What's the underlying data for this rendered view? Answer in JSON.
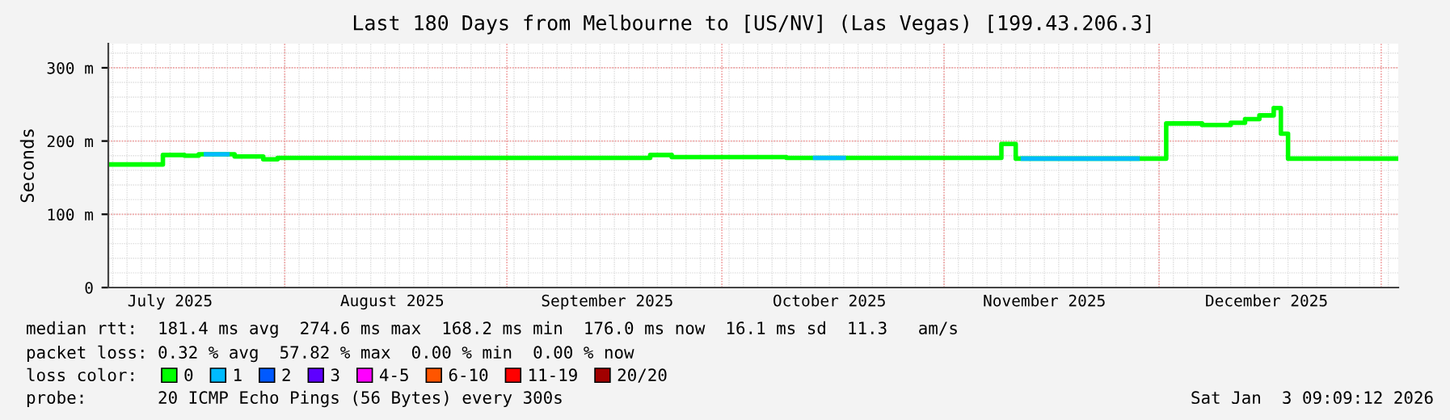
{
  "chart_data": {
    "type": "step",
    "title": "Last 180 Days from Melbourne to [US/NV] (Las Vegas) [199.43.206.3]",
    "ylabel": "Seconds",
    "xlim": [
      "2025-07-07T09:09",
      "2026-01-03T09:09"
    ],
    "xticks": [
      {
        "value": "2025-07-16",
        "label": "July 2025"
      },
      {
        "value": "2025-08-16",
        "label": "August 2025"
      },
      {
        "value": "2025-09-15",
        "label": "September 2025"
      },
      {
        "value": "2025-10-16",
        "label": "October 2025"
      },
      {
        "value": "2025-11-15",
        "label": "November 2025"
      },
      {
        "value": "2025-12-16",
        "label": "December 2025"
      },
      {
        "value": "2025-08-01",
        "label": null
      },
      {
        "value": "2025-09-01",
        "label": null
      },
      {
        "value": "2025-10-01",
        "label": null
      },
      {
        "value": "2025-11-01",
        "label": null
      },
      {
        "value": "2025-12-01",
        "label": null
      },
      {
        "value": "2026-01-01",
        "label": null
      }
    ],
    "ylim": [
      0,
      333
    ],
    "yticks": [
      0,
      {
        "value": 100,
        "label": "100 m"
      },
      {
        "value": 200,
        "label": "200 m"
      },
      {
        "value": 300,
        "label": "300 m"
      }
    ],
    "grid": true,
    "legend": "bottom",
    "legend_title": "loss color:",
    "series": [
      {
        "name": "0",
        "color": "#00ff00",
        "x": [
          "2025-07-07T09:09",
          "2025-07-15",
          "2025-07-18",
          "2025-07-20",
          "2025-07-25",
          "2025-07-29",
          "2025-07-31",
          "2025-09-21",
          "2025-09-24",
          "2025-10-10",
          "2025-11-09",
          "2025-11-11",
          "2025-12-02",
          "2025-12-07",
          "2025-12-11",
          "2025-12-13",
          "2025-12-15",
          "2025-12-17",
          "2025-12-18",
          "2025-12-19",
          "2026-01-03T09:09"
        ],
        "values": [
          168,
          181,
          180,
          182,
          179,
          175,
          177,
          181,
          178,
          177,
          196,
          176,
          224,
          222,
          225,
          230,
          235,
          245,
          210,
          176,
          176
        ]
      },
      {
        "name": "1",
        "color": "#00bbff",
        "x": [
          "2025-07-21",
          "2025-07-24"
        ],
        "values": [
          182,
          182
        ]
      },
      {
        "color": "#00bbff",
        "x": [
          "2025-10-14",
          "2025-10-18"
        ],
        "values": [
          177,
          177
        ]
      },
      {
        "color": "#00bbff",
        "x": [
          "2025-11-12",
          "2025-11-28"
        ],
        "values": [
          176,
          176
        ]
      },
      {
        "name": "2",
        "color": "#0059ff"
      },
      {
        "name": "3",
        "color": "#5e00ff"
      },
      {
        "name": "4-5",
        "color": "#ff00ff"
      },
      {
        "name": "6-10",
        "color": "#ff5500"
      },
      {
        "name": "11-19",
        "color": "#ff0000"
      },
      {
        "name": "20/20",
        "color": "#a10000"
      }
    ],
    "annotations": [
      "median rtt:  181.4 ms avg  274.6 ms max  168.2 ms min  176.0 ms now  16.1 ms sd  11.3   am/s",
      "packet loss: 0.32 % avg  57.82 % max  0.00 % min  0.00 % now",
      "probe:       20 ICMP Echo Pings (56 Bytes) every 300s",
      "Sat Jan  3 09:09:12 2026"
    ]
  }
}
